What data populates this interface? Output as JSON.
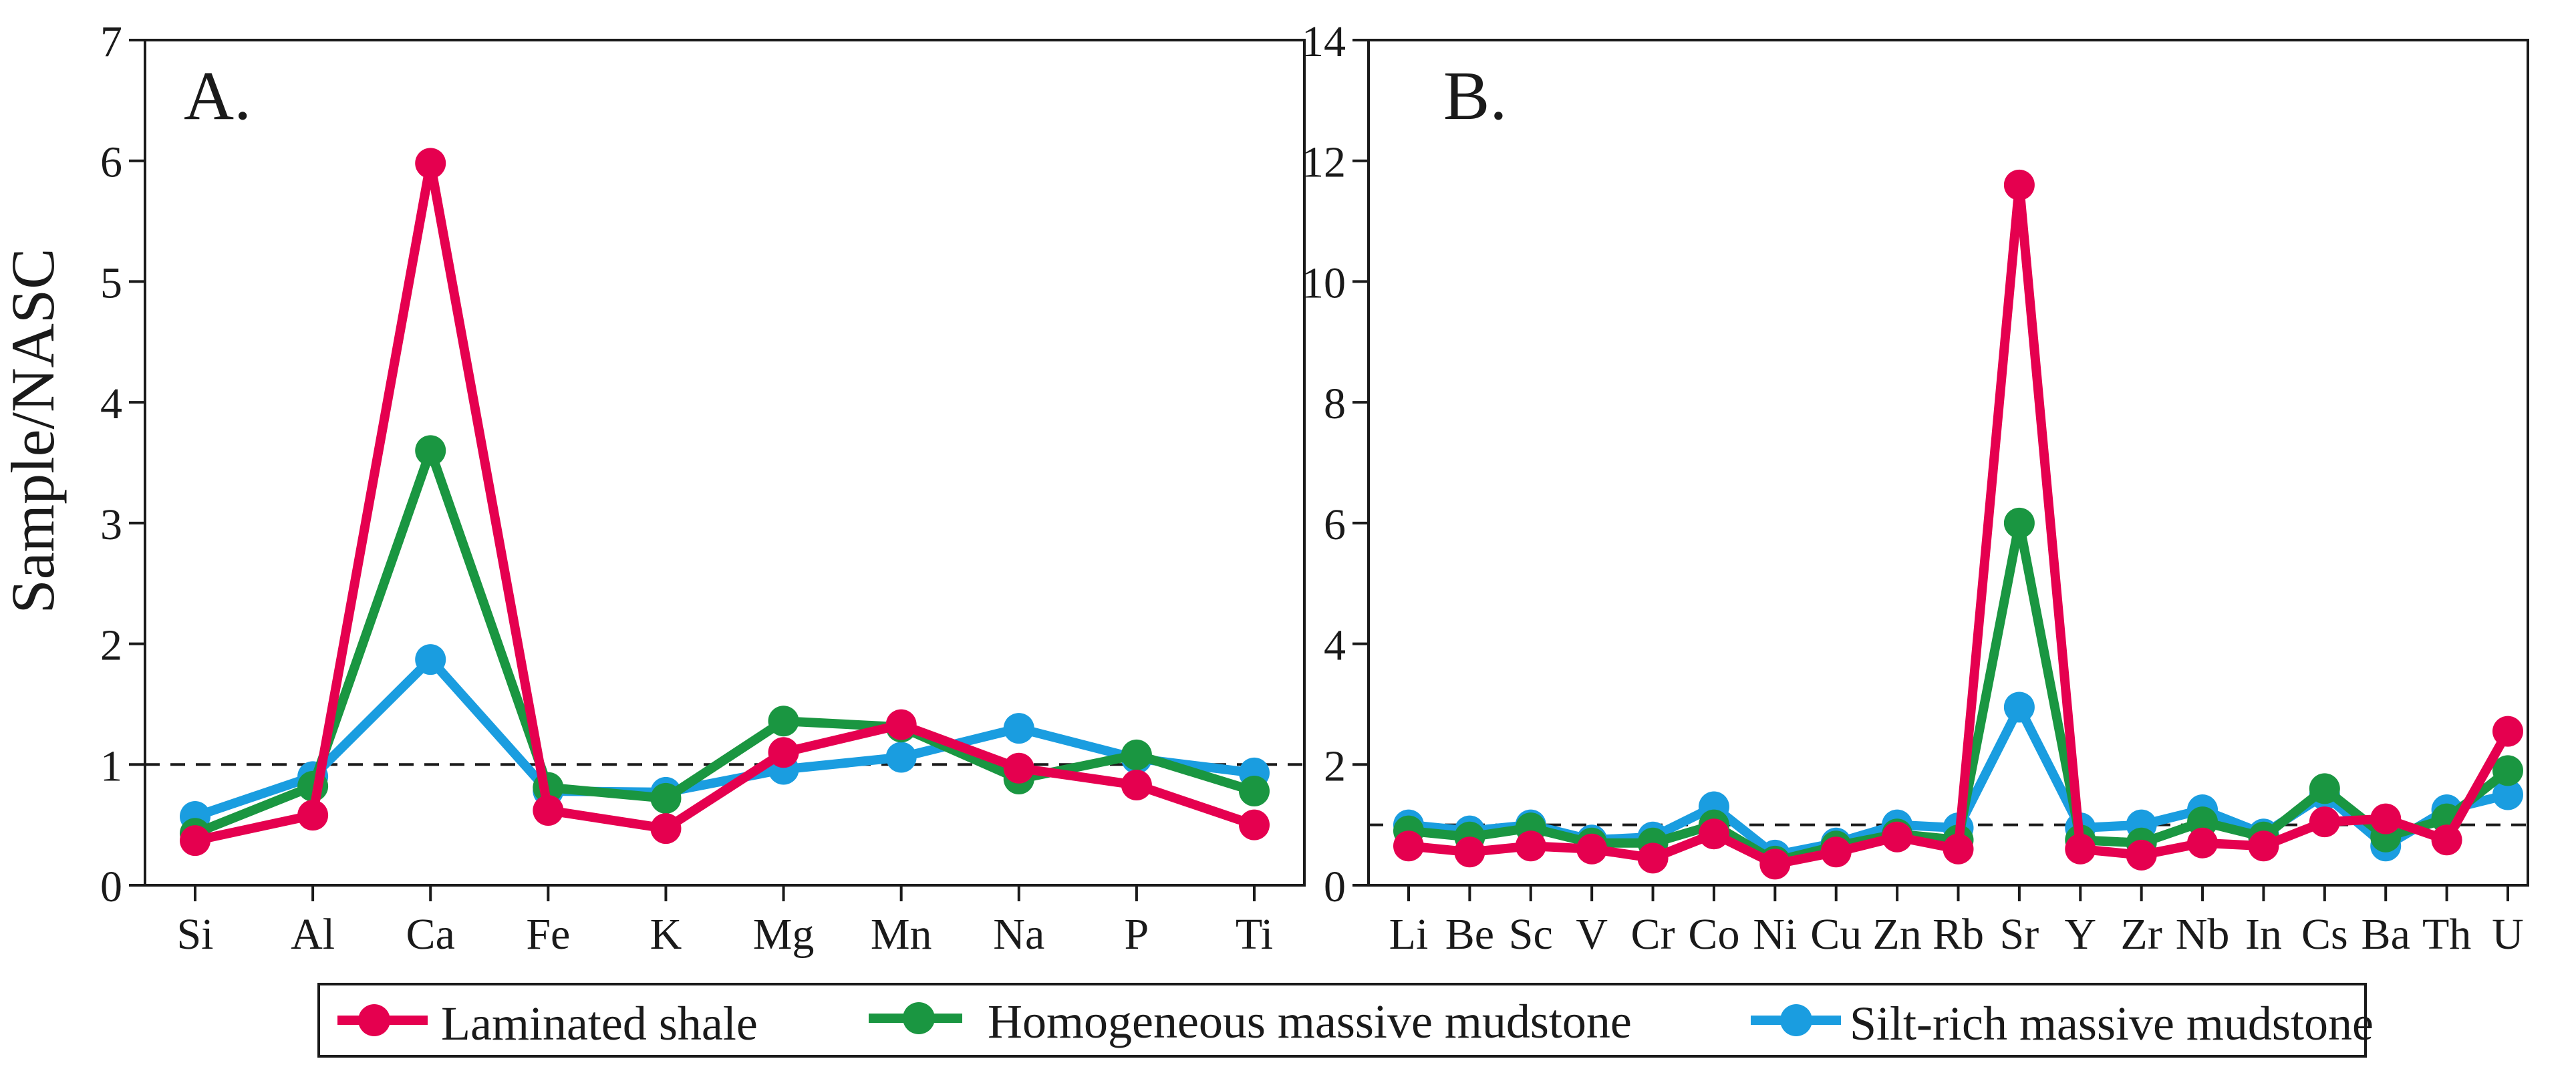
{
  "figure": {
    "ylabel": "Sample/NASC",
    "legend": [
      {
        "label": "Laminated shale",
        "color": "#e5004f"
      },
      {
        "label": "Homogeneous massive mudstone",
        "color": "#1a9641"
      },
      {
        "label": "Silt-rich massive mudstone",
        "color": "#1a9de0"
      }
    ]
  },
  "chart_data": [
    {
      "type": "line",
      "panel_label": "A.",
      "title": "",
      "xlabel": "",
      "ylabel": "Sample/NASC",
      "categories": [
        "Si",
        "Al",
        "Ca",
        "Fe",
        "K",
        "Mg",
        "Mn",
        "Na",
        "P",
        "Ti"
      ],
      "ylim": [
        0,
        7
      ],
      "yticks": [
        0,
        1,
        2,
        3,
        4,
        5,
        6,
        7
      ],
      "reference_line": 1,
      "series": [
        {
          "name": "Silt-rich massive mudstone",
          "color": "#1a9de0",
          "values": [
            0.57,
            0.9,
            1.87,
            0.78,
            0.77,
            0.96,
            1.06,
            1.3,
            1.05,
            0.93
          ]
        },
        {
          "name": "Homogeneous massive mudstone",
          "color": "#1a9641",
          "values": [
            0.43,
            0.82,
            3.6,
            0.81,
            0.72,
            1.36,
            1.31,
            0.88,
            1.08,
            0.78
          ]
        },
        {
          "name": "Laminated shale",
          "color": "#e5004f",
          "values": [
            0.37,
            0.58,
            5.98,
            0.62,
            0.47,
            1.1,
            1.33,
            0.97,
            0.83,
            0.5
          ]
        }
      ]
    },
    {
      "type": "line",
      "panel_label": "B.",
      "title": "",
      "xlabel": "",
      "ylabel": "",
      "categories": [
        "Li",
        "Be",
        "Sc",
        "V",
        "Cr",
        "Co",
        "Ni",
        "Cu",
        "Zn",
        "Rb",
        "Sr",
        "Y",
        "Zr",
        "Nb",
        "In",
        "Cs",
        "Ba",
        "Th",
        "U"
      ],
      "ylim": [
        0,
        14
      ],
      "yticks": [
        0,
        2,
        4,
        6,
        8,
        10,
        12,
        14
      ],
      "reference_line": 1,
      "series": [
        {
          "name": "Silt-rich massive mudstone",
          "color": "#1a9de0",
          "values": [
            1.0,
            0.9,
            1.0,
            0.75,
            0.8,
            1.3,
            0.5,
            0.7,
            1.0,
            0.95,
            2.95,
            0.95,
            1.0,
            1.25,
            0.85,
            1.5,
            0.65,
            1.25,
            1.5
          ]
        },
        {
          "name": "Homogeneous massive mudstone",
          "color": "#1a9641",
          "values": [
            0.9,
            0.8,
            0.95,
            0.7,
            0.7,
            1.0,
            0.4,
            0.65,
            0.85,
            0.75,
            6.0,
            0.75,
            0.7,
            1.05,
            0.8,
            1.6,
            0.8,
            1.1,
            1.9
          ]
        },
        {
          "name": "Laminated shale",
          "color": "#e5004f",
          "values": [
            0.65,
            0.55,
            0.65,
            0.6,
            0.45,
            0.85,
            0.35,
            0.55,
            0.8,
            0.6,
            11.6,
            0.6,
            0.5,
            0.7,
            0.65,
            1.05,
            1.1,
            0.75,
            2.55
          ]
        }
      ]
    }
  ]
}
